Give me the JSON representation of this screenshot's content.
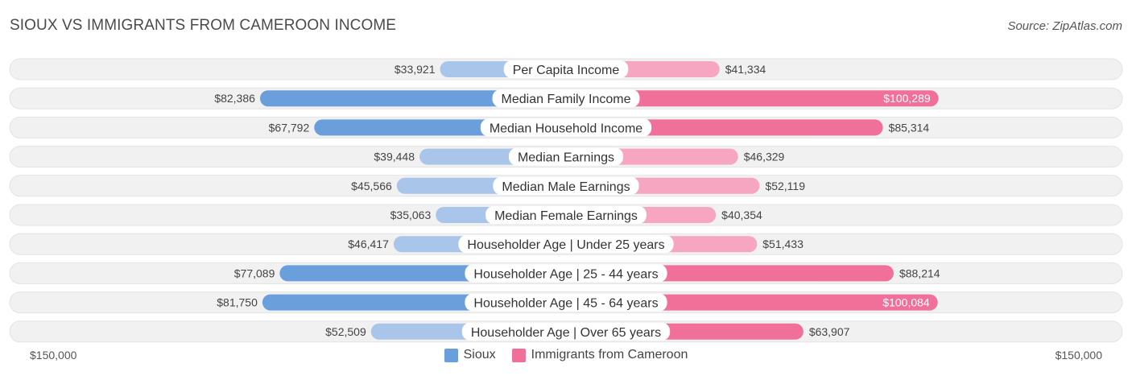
{
  "header": {
    "title": "SIOUX VS IMMIGRANTS FROM CAMEROON INCOME",
    "source": "Source: ZipAtlas.com"
  },
  "axis": {
    "left_label": "$150,000",
    "right_label": "$150,000"
  },
  "colors": {
    "left_strong": "#6a9fdc",
    "left_light": "#a9c6ea",
    "right_strong": "#f07099",
    "right_light": "#f6a6c0",
    "track": "#f1f1f1"
  },
  "chart_data": {
    "type": "bar",
    "orientation": "horizontal-diverging",
    "max": 150000,
    "categories": [
      "Per Capita Income",
      "Median Family Income",
      "Median Household Income",
      "Median Earnings",
      "Median Male Earnings",
      "Median Female Earnings",
      "Householder Age | Under 25 years",
      "Householder Age | 25 - 44 years",
      "Householder Age | 45 - 64 years",
      "Householder Age | Over 65 years"
    ],
    "series": [
      {
        "name": "Sioux",
        "side": "left",
        "values": [
          33921,
          82386,
          67792,
          39448,
          45566,
          35063,
          46417,
          77089,
          81750,
          52509
        ],
        "labels": [
          "$33,921",
          "$82,386",
          "$67,792",
          "$39,448",
          "$45,566",
          "$35,063",
          "$46,417",
          "$77,089",
          "$81,750",
          "$52,509"
        ]
      },
      {
        "name": "Immigrants from Cameroon",
        "side": "right",
        "values": [
          41334,
          100289,
          85314,
          46329,
          52119,
          40354,
          51433,
          88214,
          100084,
          63907
        ],
        "labels": [
          "$41,334",
          "$100,289",
          "$85,314",
          "$46,329",
          "$52,119",
          "$40,354",
          "$51,433",
          "$88,214",
          "$100,084",
          "$63,907"
        ]
      }
    ],
    "legend_position": "bottom-center"
  }
}
